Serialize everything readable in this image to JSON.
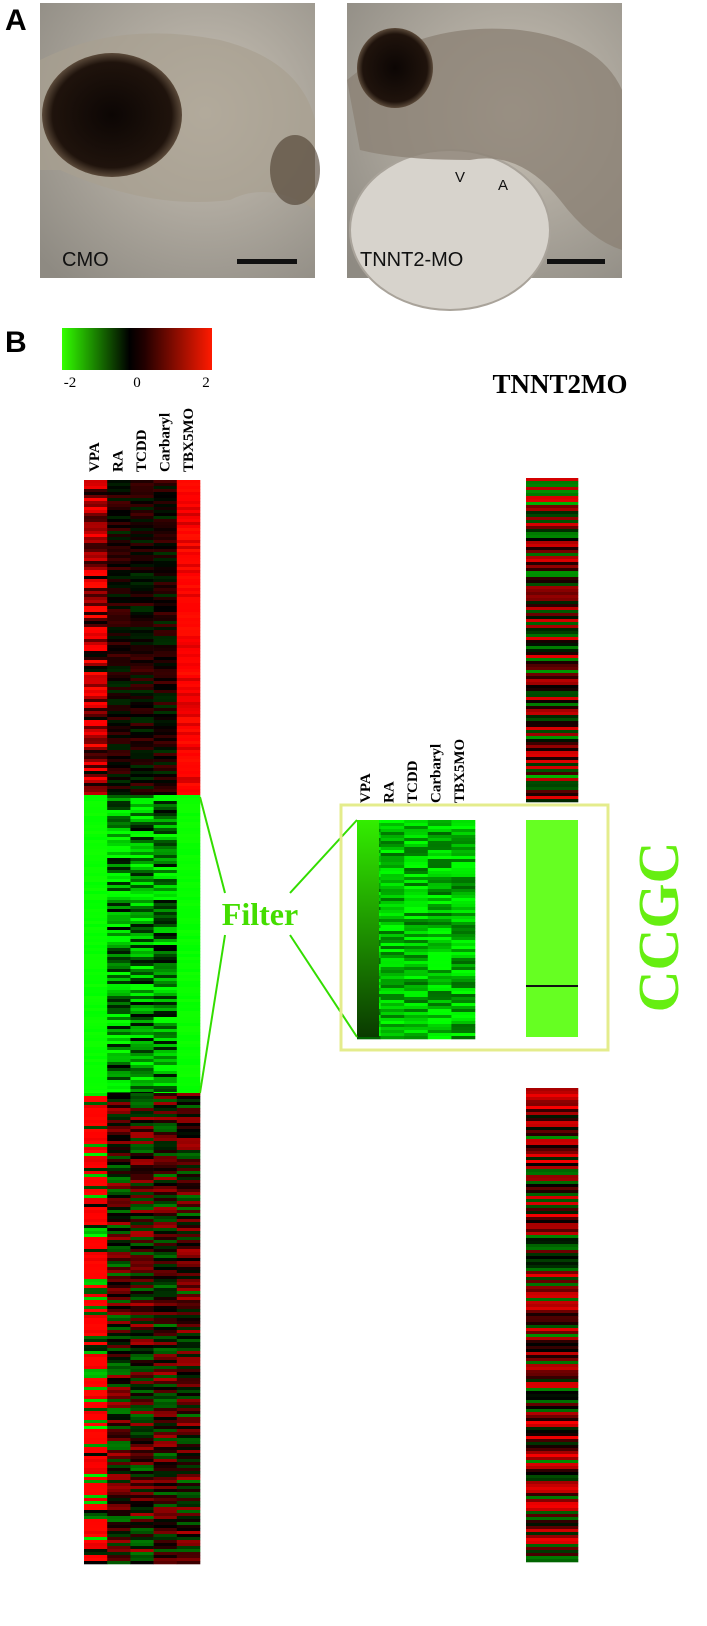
{
  "panel_a": {
    "label": "A",
    "images": [
      {
        "label": "CMO"
      },
      {
        "label": "TNNT2-MO",
        "annotations": [
          "V",
          "A"
        ]
      }
    ]
  },
  "panel_b": {
    "label": "B",
    "colorbar_labels": [
      "-2",
      "0",
      "2"
    ],
    "columns": [
      "VPA",
      "RA",
      "TCDD",
      "Carbaryl",
      "TBX5MO"
    ],
    "comparison_title": "TNNT2MO",
    "filter_label": "Filter",
    "cluster_label": "CCGC"
  }
}
